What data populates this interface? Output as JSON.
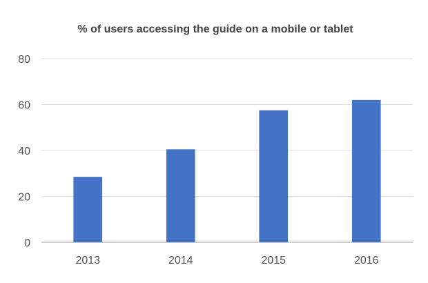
{
  "chart_data": {
    "type": "bar",
    "title": "% of users accessing the guide on a mobile or tablet",
    "xlabel": "",
    "ylabel": "",
    "categories": [
      "2013",
      "2014",
      "2015",
      "2016"
    ],
    "values": [
      28.5,
      40.5,
      57.5,
      62
    ],
    "ylim": [
      0,
      80
    ],
    "yticks": [
      0,
      20,
      40,
      60,
      80
    ],
    "grid": true,
    "legend": "none",
    "bar_color": "#4472C4"
  }
}
